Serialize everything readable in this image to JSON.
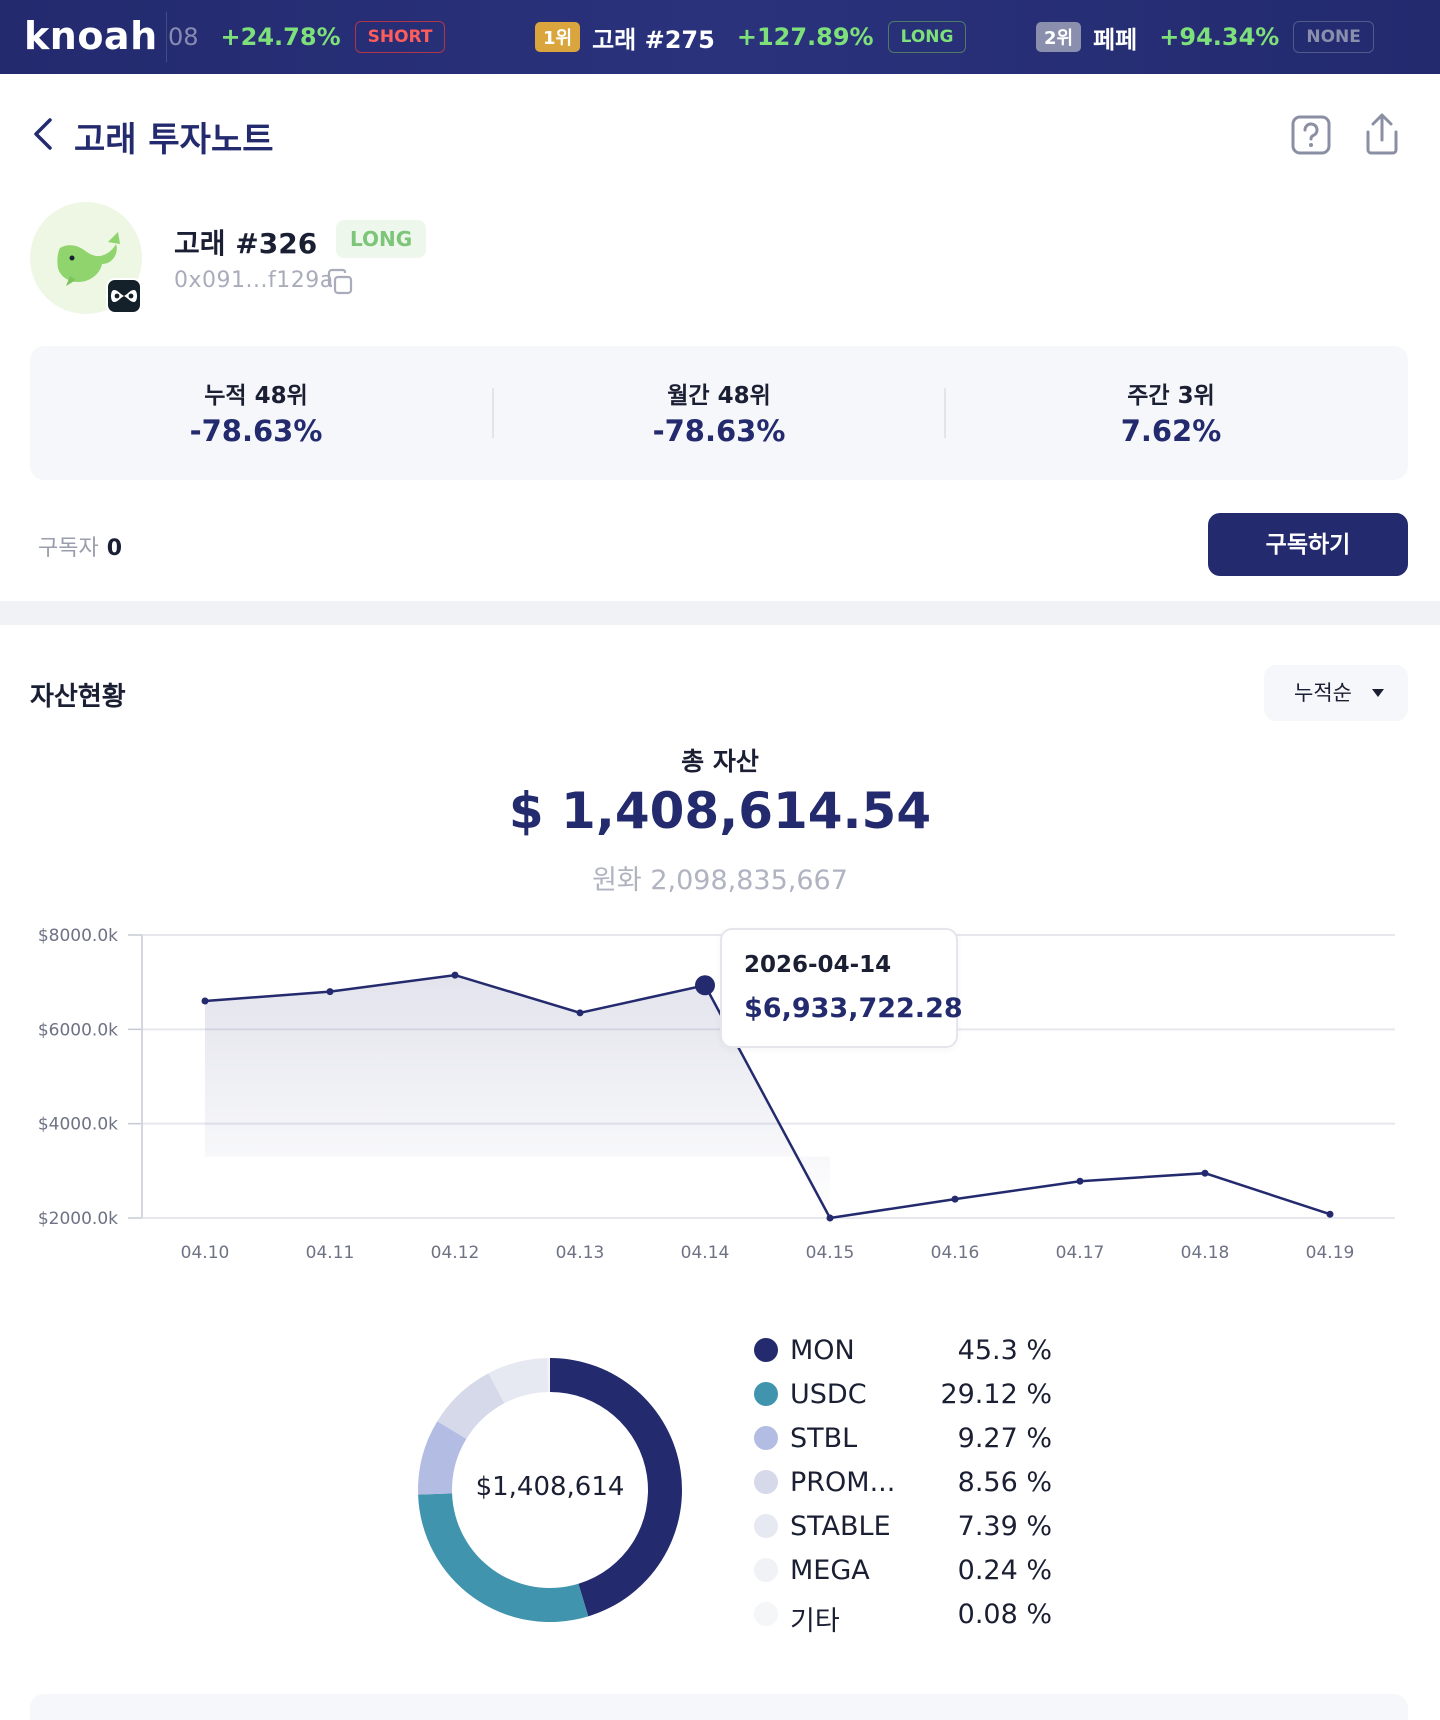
{
  "ticker": {
    "logo": "knoah",
    "items": [
      {
        "rank": "",
        "name": "",
        "fragment": "08",
        "pct": "+24.78%",
        "position": "SHORT"
      },
      {
        "rank": "1위",
        "name": "고래 #275",
        "fragment": "",
        "pct": "+127.89%",
        "position": "LONG"
      },
      {
        "rank": "2위",
        "name": "페페",
        "fragment": "",
        "pct": "+94.34%",
        "position": "NONE"
      }
    ],
    "colors": {
      "up": "#7ee07a",
      "short": "#ff5c5c",
      "rank1": "#d9a53c",
      "rank2": "#8a8fae"
    }
  },
  "header": {
    "title": "고래 투자노트",
    "back_icon": "chevron-left-icon",
    "help_icon": "question-square-icon",
    "share_icon": "share-icon"
  },
  "profile": {
    "name": "고래 #326",
    "position": "LONG",
    "address": "0x091...f129a",
    "avatar_icon": "whale-icon",
    "chain_icon": "chain-logo-icon"
  },
  "stats": [
    {
      "label": "누적 48위",
      "value": "-78.63%"
    },
    {
      "label": "월간 48위",
      "value": "-78.63%"
    },
    {
      "label": "주간 3위",
      "value": "7.62%"
    }
  ],
  "subscribers": {
    "label": "구독자",
    "count": "0"
  },
  "subscribe_button": "구독하기",
  "assets": {
    "title": "자산현황",
    "sort": "누적순",
    "total_label": "총 자산",
    "total_usd": "$ 1,408,614.54",
    "total_krw": "원화 2,098,835,667"
  },
  "chart_data": {
    "type": "area",
    "x": [
      "04.10",
      "04.11",
      "04.12",
      "04.13",
      "04.14",
      "04.15",
      "04.16",
      "04.17",
      "04.18",
      "04.19"
    ],
    "values": [
      6600,
      6800,
      7150,
      6350,
      6933.72,
      2000,
      2400,
      2780,
      2950,
      2080
    ],
    "yticks": [
      "$2000.0k",
      "$4000.0k",
      "$6000.0k",
      "$8000.0k"
    ],
    "ylim": [
      2000,
      8000
    ],
    "grid": true,
    "highlight": {
      "index": 4,
      "date": "2026-04-14",
      "value": "$6,933,722.28"
    },
    "line_color": "#232a6e"
  },
  "allocation": {
    "center_label": "$1,408,614",
    "chart_data": {
      "type": "pie",
      "labels": [
        "MON",
        "USDC",
        "STBL",
        "PROM...",
        "STABLE",
        "MEGA",
        "기타"
      ],
      "values": [
        45.3,
        29.12,
        9.27,
        8.56,
        7.39,
        0.24,
        0.08
      ],
      "display": [
        "45.3 %",
        "29.12 %",
        "9.27 %",
        "8.56 %",
        "7.39 %",
        "0.24 %",
        "0.08 %"
      ],
      "colors": [
        "#232a6e",
        "#4194ae",
        "#b3bde3",
        "#d6d9ea",
        "#e7e9f2",
        "#f1f2f6",
        "#f5f6f8"
      ]
    }
  }
}
